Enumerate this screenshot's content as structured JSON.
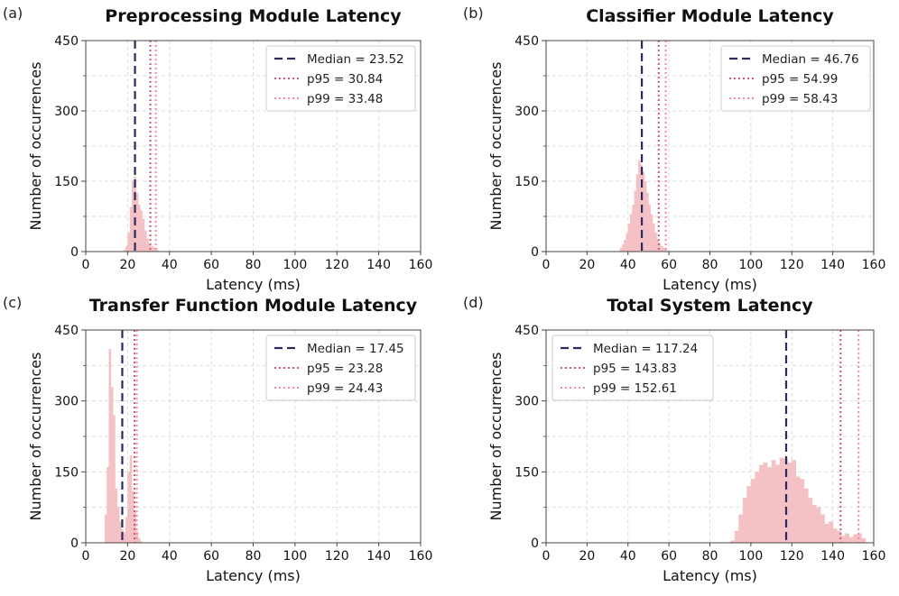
{
  "colors": {
    "histogram": "#f4c2c4",
    "median_line": "#2e2a5e",
    "p95_line": "#c9587a",
    "p99_line": "#f08c9a",
    "grid": "#dddddd",
    "axis": "#444444"
  },
  "chart_data": [
    {
      "type": "histogram",
      "panel_label": "(a)",
      "title": "Preprocessing Module Latency",
      "xlabel": "Latency (ms)",
      "ylabel": "Number of occurrences",
      "xlim": [
        0,
        160
      ],
      "ylim": [
        0,
        450
      ],
      "xticks": [
        0,
        20,
        40,
        60,
        80,
        100,
        120,
        140,
        160
      ],
      "yticks": [
        0,
        150,
        300,
        450
      ],
      "yticks_minor": [
        75,
        225,
        375
      ],
      "bin_width": 1,
      "bins": [
        [
          18,
          3
        ],
        [
          19,
          12
        ],
        [
          20,
          40
        ],
        [
          21,
          95
        ],
        [
          22,
          150
        ],
        [
          23,
          160
        ],
        [
          24,
          125
        ],
        [
          25,
          100
        ],
        [
          26,
          88
        ],
        [
          27,
          70
        ],
        [
          28,
          45
        ],
        [
          29,
          28
        ],
        [
          30,
          18
        ],
        [
          31,
          12
        ],
        [
          32,
          10
        ],
        [
          33,
          8
        ],
        [
          34,
          3
        ]
      ],
      "legend": [
        {
          "kind": "median",
          "label": "Median = 23.52",
          "value": 23.52
        },
        {
          "kind": "p95",
          "label": "p95 = 30.84",
          "value": 30.84
        },
        {
          "kind": "p99",
          "label": "p99 = 33.48",
          "value": 33.48
        }
      ]
    },
    {
      "type": "histogram",
      "panel_label": "(b)",
      "title": "Classifier Module Latency",
      "xlabel": "Latency (ms)",
      "ylabel": "Number of occurrences",
      "xlim": [
        0,
        160
      ],
      "ylim": [
        0,
        450
      ],
      "xticks": [
        0,
        20,
        40,
        60,
        80,
        100,
        120,
        140,
        160
      ],
      "yticks": [
        0,
        150,
        300,
        450
      ],
      "yticks_minor": [
        75,
        225,
        375
      ],
      "bin_width": 1,
      "bins": [
        [
          36,
          8
        ],
        [
          37,
          15
        ],
        [
          38,
          25
        ],
        [
          39,
          40
        ],
        [
          40,
          60
        ],
        [
          41,
          80
        ],
        [
          42,
          100
        ],
        [
          43,
          130
        ],
        [
          44,
          165
        ],
        [
          45,
          195
        ],
        [
          46,
          185
        ],
        [
          47,
          170
        ],
        [
          48,
          150
        ],
        [
          49,
          125
        ],
        [
          50,
          100
        ],
        [
          51,
          80
        ],
        [
          52,
          60
        ],
        [
          53,
          40
        ],
        [
          54,
          25
        ],
        [
          55,
          18
        ],
        [
          56,
          12
        ],
        [
          57,
          8
        ],
        [
          58,
          5
        ]
      ],
      "legend": [
        {
          "kind": "median",
          "label": "Median = 46.76",
          "value": 46.76
        },
        {
          "kind": "p95",
          "label": "p95 = 54.99",
          "value": 54.99
        },
        {
          "kind": "p99",
          "label": "p99 = 58.43",
          "value": 58.43
        }
      ]
    },
    {
      "type": "histogram",
      "panel_label": "(c)",
      "title": "Transfer Function Module Latency",
      "xlabel": "Latency (ms)",
      "ylabel": "Number of occurrences",
      "xlim": [
        0,
        160
      ],
      "ylim": [
        0,
        450
      ],
      "xticks": [
        0,
        20,
        40,
        60,
        80,
        100,
        120,
        140,
        160
      ],
      "yticks": [
        0,
        150,
        300,
        450
      ],
      "yticks_minor": [
        75,
        225,
        375
      ],
      "bin_width": 1,
      "bins": [
        [
          9,
          60
        ],
        [
          10,
          160
        ],
        [
          11,
          410
        ],
        [
          12,
          330
        ],
        [
          13,
          270
        ],
        [
          14,
          115
        ],
        [
          15,
          75
        ],
        [
          16,
          45
        ],
        [
          17,
          28
        ],
        [
          18,
          22
        ],
        [
          19,
          55
        ],
        [
          20,
          150
        ],
        [
          21,
          185
        ],
        [
          22,
          110
        ],
        [
          23,
          65
        ],
        [
          24,
          25
        ],
        [
          25,
          10
        ],
        [
          26,
          3
        ]
      ],
      "legend": [
        {
          "kind": "median",
          "label": "Median = 17.45",
          "value": 17.45
        },
        {
          "kind": "p95",
          "label": "p95 = 23.28",
          "value": 23.28
        },
        {
          "kind": "p99",
          "label": "p99 = 24.43",
          "value": 24.43
        }
      ]
    },
    {
      "type": "histogram",
      "panel_label": "(d)",
      "title": "Total System Latency",
      "xlabel": "Latency (ms)",
      "ylabel": "Number of occurrences",
      "xlim": [
        0,
        160
      ],
      "ylim": [
        0,
        450
      ],
      "xticks": [
        0,
        20,
        40,
        60,
        80,
        100,
        120,
        140,
        160
      ],
      "yticks": [
        0,
        150,
        300,
        450
      ],
      "yticks_minor": [
        75,
        225,
        375
      ],
      "bin_width": 2,
      "bins": [
        [
          90,
          5
        ],
        [
          92,
          25
        ],
        [
          94,
          60
        ],
        [
          96,
          95
        ],
        [
          98,
          120
        ],
        [
          100,
          135
        ],
        [
          102,
          150
        ],
        [
          104,
          165
        ],
        [
          106,
          170
        ],
        [
          108,
          160
        ],
        [
          110,
          175
        ],
        [
          112,
          165
        ],
        [
          114,
          180
        ],
        [
          116,
          178
        ],
        [
          118,
          170
        ],
        [
          120,
          175
        ],
        [
          122,
          140
        ],
        [
          124,
          135
        ],
        [
          126,
          115
        ],
        [
          128,
          95
        ],
        [
          130,
          80
        ],
        [
          132,
          75
        ],
        [
          134,
          60
        ],
        [
          136,
          40
        ],
        [
          138,
          45
        ],
        [
          140,
          30
        ],
        [
          142,
          25
        ],
        [
          144,
          15
        ],
        [
          146,
          20
        ],
        [
          148,
          12
        ],
        [
          150,
          18
        ],
        [
          152,
          20
        ],
        [
          154,
          10
        ]
      ],
      "legend": [
        {
          "kind": "median",
          "label": "Median = 117.24",
          "value": 117.24
        },
        {
          "kind": "p95",
          "label": "p95 = 143.83",
          "value": 143.83
        },
        {
          "kind": "p99",
          "label": "p99 = 152.61",
          "value": 152.61
        }
      ]
    }
  ]
}
